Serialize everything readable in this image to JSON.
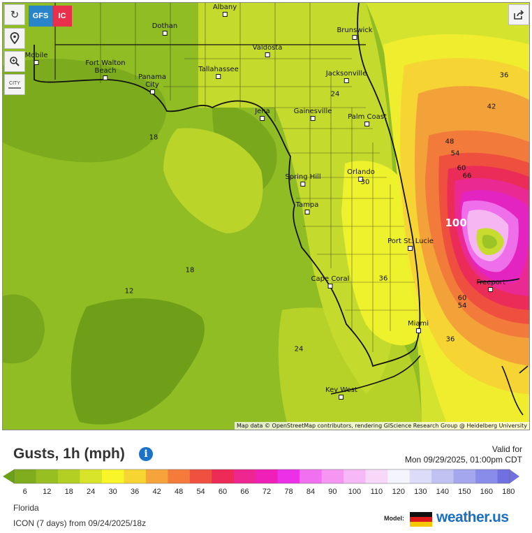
{
  "header_buttons": {
    "gfs_label": "GFS",
    "icon_label": "IC",
    "city_label": "CITY"
  },
  "colors": {
    "gfs": "#2a84c9",
    "icon": "#e8304c"
  },
  "cities": [
    {
      "name": "Albany"
    },
    {
      "name": "Dothan"
    },
    {
      "name": "Brunswick"
    },
    {
      "name": "Valdosta"
    },
    {
      "name": "Mobile"
    },
    {
      "name": "Fort Walton\nBeach"
    },
    {
      "name": "Panama\nCity"
    },
    {
      "name": "Tallahassee"
    },
    {
      "name": "Jacksonville"
    },
    {
      "name": "Jena"
    },
    {
      "name": "Gainesville"
    },
    {
      "name": "Palm Coast"
    },
    {
      "name": "Orlando"
    },
    {
      "name": "Spring Hill"
    },
    {
      "name": "Tampa"
    },
    {
      "name": "Port St. Lucie"
    },
    {
      "name": "Cape Coral"
    },
    {
      "name": "Freeport"
    },
    {
      "name": "Miami"
    },
    {
      "name": "Key West"
    }
  ],
  "map_values": [
    "36",
    "42",
    "48",
    "54",
    "60",
    "66",
    "100",
    "24",
    "18",
    "30",
    "36",
    "18",
    "12",
    "24",
    "60",
    "54",
    "36"
  ],
  "attribution": "Map data © OpenStreetMap contributors, rendering GIScience Research Group @ Heidelberg University",
  "title": "Gusts, 1h (mph)",
  "info_icon": "i",
  "valid_for_label": "Valid for",
  "valid_time": "Mon 09/29/2025, 01:00pm CDT",
  "legend": {
    "ticks": [
      "6",
      "12",
      "18",
      "24",
      "30",
      "36",
      "42",
      "48",
      "54",
      "60",
      "66",
      "72",
      "78",
      "84",
      "90",
      "100",
      "110",
      "120",
      "130",
      "140",
      "150",
      "160",
      "180"
    ],
    "colors": [
      "#6aa01a",
      "#80ad1e",
      "#97bf22",
      "#b4cf24",
      "#d8e42a",
      "#f8f628",
      "#f6d532",
      "#f5a43b",
      "#f47b3a",
      "#f05040",
      "#ee2a56",
      "#ee2690",
      "#ee20b8",
      "#ec30e8",
      "#f070f0",
      "#f496f2",
      "#f6b8f6",
      "#f8d8f8",
      "#f4f4fc",
      "#dcdcf8",
      "#c0c2f2",
      "#a4a6ee",
      "#8a8cea",
      "#7070e0"
    ]
  },
  "region": "Florida",
  "run_info": "ICON (7 days) from 09/24/2025/18z",
  "model_label": "Model:",
  "brand": "weather.us"
}
